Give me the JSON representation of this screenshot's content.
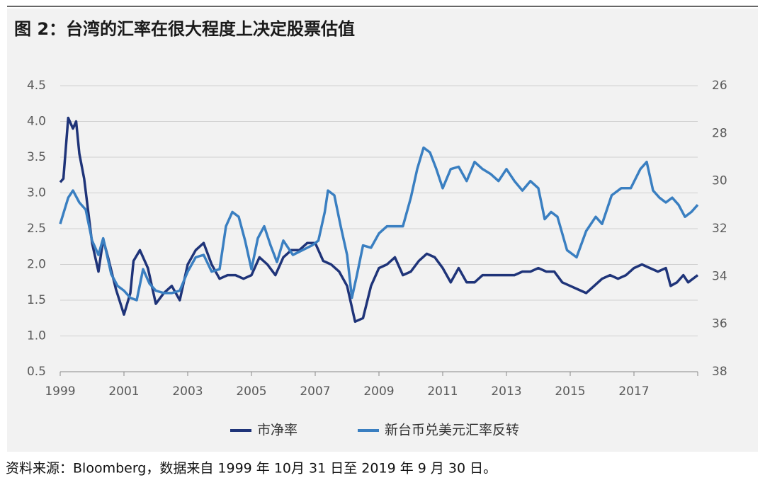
{
  "chart_data": {
    "type": "line",
    "title": "图 2：台湾的汇率在很大程度上决定股票估值",
    "source": "资料来源：Bloomberg，数据来自 1999 年 10月 31 日至 2019 年 9 月 30 日。",
    "xlim": [
      1999,
      2019
    ],
    "xticks": [
      1999,
      2001,
      2003,
      2005,
      2007,
      2009,
      2011,
      2013,
      2015,
      2017
    ],
    "ylim": [
      0.5,
      4.5
    ],
    "yticks": [
      0.5,
      {
        "value": 1,
        "label": "1.0"
      },
      1.5,
      {
        "value": 2,
        "label": "2.0"
      },
      2.5,
      {
        "value": 3,
        "label": "3.0"
      },
      3.5,
      {
        "value": 4,
        "label": "4.0"
      },
      4.5
    ],
    "y2lim": [
      26,
      38
    ],
    "y2_inverted": true,
    "y2ticks": [
      26,
      28,
      30,
      32,
      34,
      36,
      38
    ],
    "grid": true,
    "legend": "bottom",
    "series": [
      {
        "name": "市净率",
        "color": "#1f3479",
        "x": [
          1999.0,
          1999.1,
          1999.25,
          1999.4,
          1999.5,
          1999.6,
          1999.75,
          2000.0,
          2000.2,
          2000.35,
          2000.5,
          2000.75,
          2001.0,
          2001.2,
          2001.3,
          2001.5,
          2001.75,
          2002.0,
          2002.25,
          2002.5,
          2002.75,
          2003.0,
          2003.25,
          2003.5,
          2003.75,
          2004.0,
          2004.25,
          2004.5,
          2004.75,
          2005.0,
          2005.25,
          2005.5,
          2005.75,
          2006.0,
          2006.25,
          2006.5,
          2006.75,
          2007.0,
          2007.25,
          2007.5,
          2007.75,
          2008.0,
          2008.25,
          2008.5,
          2008.75,
          2009.0,
          2009.25,
          2009.5,
          2009.75,
          2010.0,
          2010.25,
          2010.5,
          2010.75,
          2011.0,
          2011.25,
          2011.5,
          2011.75,
          2012.0,
          2012.25,
          2012.5,
          2012.75,
          2013.0,
          2013.25,
          2013.5,
          2013.75,
          2014.0,
          2014.25,
          2014.5,
          2014.75,
          2015.0,
          2015.25,
          2015.5,
          2015.75,
          2016.0,
          2016.25,
          2016.5,
          2016.75,
          2017.0,
          2017.25,
          2017.5,
          2017.75,
          2018.0,
          2018.15,
          2018.35,
          2018.55,
          2018.7,
          2019.0
        ],
        "values": [
          3.15,
          3.2,
          4.05,
          3.9,
          4.0,
          3.55,
          3.2,
          2.3,
          1.9,
          2.35,
          2.1,
          1.65,
          1.3,
          1.6,
          2.05,
          2.2,
          1.95,
          1.45,
          1.6,
          1.7,
          1.5,
          2.0,
          2.2,
          2.3,
          2.0,
          1.8,
          1.85,
          1.85,
          1.8,
          1.85,
          2.1,
          2.0,
          1.85,
          2.1,
          2.2,
          2.2,
          2.3,
          2.3,
          2.05,
          2.0,
          1.9,
          1.7,
          1.2,
          1.25,
          1.7,
          1.95,
          2.0,
          2.1,
          1.85,
          1.9,
          2.05,
          2.15,
          2.1,
          1.95,
          1.75,
          1.95,
          1.75,
          1.75,
          1.85,
          1.85,
          1.85,
          1.85,
          1.85,
          1.9,
          1.9,
          1.95,
          1.9,
          1.9,
          1.75,
          1.7,
          1.65,
          1.6,
          1.7,
          1.8,
          1.85,
          1.8,
          1.85,
          1.95,
          2.0,
          1.95,
          1.9,
          1.95,
          1.7,
          1.75,
          1.85,
          1.75,
          1.85
        ]
      },
      {
        "name": "新台币兑美元汇率反转",
        "color": "#3a7fc1",
        "axis": "y2",
        "x": [
          1999.0,
          1999.25,
          1999.4,
          1999.6,
          1999.8,
          2000.0,
          2000.2,
          2000.35,
          2000.6,
          2000.8,
          2001.0,
          2001.2,
          2001.4,
          2001.6,
          2001.8,
          2002.0,
          2002.25,
          2002.5,
          2002.75,
          2003.0,
          2003.25,
          2003.5,
          2003.75,
          2004.0,
          2004.2,
          2004.4,
          2004.6,
          2004.8,
          2005.0,
          2005.2,
          2005.4,
          2005.6,
          2005.8,
          2006.0,
          2006.3,
          2006.6,
          2006.9,
          2007.1,
          2007.3,
          2007.4,
          2007.6,
          2007.8,
          2008.0,
          2008.15,
          2008.3,
          2008.5,
          2008.75,
          2009.0,
          2009.25,
          2009.5,
          2009.75,
          2010.0,
          2010.2,
          2010.4,
          2010.6,
          2010.8,
          2011.0,
          2011.25,
          2011.5,
          2011.75,
          2012.0,
          2012.25,
          2012.5,
          2012.75,
          2013.0,
          2013.25,
          2013.5,
          2013.75,
          2014.0,
          2014.2,
          2014.4,
          2014.6,
          2014.9,
          2015.2,
          2015.5,
          2015.8,
          2016.0,
          2016.3,
          2016.6,
          2016.9,
          2017.2,
          2017.4,
          2017.6,
          2017.8,
          2018.0,
          2018.2,
          2018.4,
          2018.6,
          2018.8,
          2019.0
        ],
        "values": [
          31.8,
          30.7,
          30.4,
          30.9,
          31.2,
          32.5,
          33.1,
          32.4,
          33.9,
          34.4,
          34.6,
          34.9,
          35.0,
          33.7,
          34.3,
          34.6,
          34.7,
          34.7,
          34.6,
          33.8,
          33.2,
          33.1,
          33.8,
          33.7,
          31.9,
          31.3,
          31.5,
          32.5,
          33.7,
          32.4,
          31.9,
          32.7,
          33.4,
          32.5,
          33.1,
          32.9,
          32.7,
          32.5,
          31.3,
          30.4,
          30.6,
          31.9,
          33.1,
          34.9,
          34.0,
          32.7,
          32.8,
          32.2,
          31.9,
          31.9,
          31.9,
          30.7,
          29.5,
          28.6,
          28.8,
          29.5,
          30.3,
          29.5,
          29.4,
          30.0,
          29.2,
          29.5,
          29.7,
          30.0,
          29.5,
          30.0,
          30.4,
          30.0,
          30.3,
          31.6,
          31.3,
          31.5,
          32.9,
          33.2,
          32.1,
          31.5,
          31.8,
          30.6,
          30.3,
          30.3,
          29.5,
          29.2,
          30.4,
          30.7,
          30.9,
          30.7,
          31.0,
          31.5,
          31.3,
          31.0
        ]
      }
    ]
  }
}
